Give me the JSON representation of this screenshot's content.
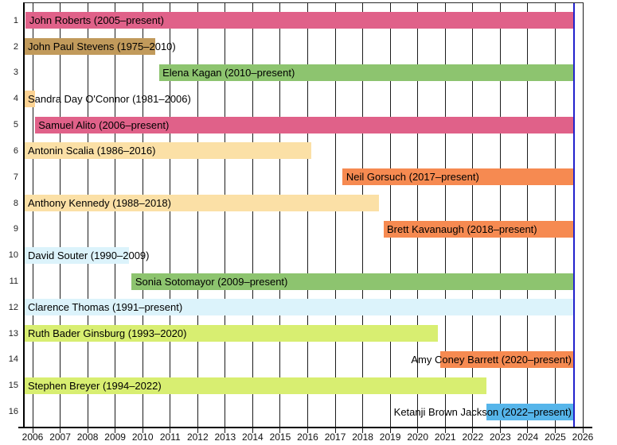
{
  "chart_data": {
    "type": "gantt",
    "title": "",
    "x_axis": {
      "min": 2006,
      "max": 2026,
      "tick_years": [
        2006,
        2007,
        2008,
        2009,
        2010,
        2011,
        2012,
        2013,
        2014,
        2015,
        2016,
        2017,
        2018,
        2019,
        2020,
        2021,
        2022,
        2023,
        2024,
        2025,
        2026
      ],
      "tick_labels": [
        "2006",
        "2007",
        "2008",
        "2009",
        "2010",
        "2011",
        "2012",
        "2013",
        "2014",
        "2015",
        "2016",
        "2017",
        "2018",
        "2019",
        "2020",
        "2021",
        "2022",
        "2023",
        "2024",
        "2025",
        "2026"
      ]
    },
    "now_marker_year": 2025.68,
    "now_marker_color": "#2222cc",
    "grid": true,
    "rows": [
      {
        "num": "1",
        "label": "John Roberts (2005–present)",
        "start": 2005.75,
        "end": null,
        "color": "#e06189",
        "label_align": "left"
      },
      {
        "num": "2",
        "label": "John Paul Stevens (1975–2010)",
        "start": 1975.96,
        "end": 2010.47,
        "color": "#c19a5b",
        "label_align": "left"
      },
      {
        "num": "3",
        "label": "Elena Kagan (2010–present)",
        "start": 2010.59,
        "end": null,
        "color": "#8dc46f",
        "label_align": "left"
      },
      {
        "num": "4",
        "label": "Sandra Day O'Connor (1981–2006)",
        "start": 1981.75,
        "end": 2006.08,
        "color": "#fcd292",
        "label_align": "left"
      },
      {
        "num": "5",
        "label": "Samuel Alito (2006–present)",
        "start": 2006.08,
        "end": null,
        "color": "#e06189",
        "label_align": "left"
      },
      {
        "num": "6",
        "label": "Antonin Scalia (1986–2016)",
        "start": 1986.73,
        "end": 2016.12,
        "color": "#fbe0a6",
        "label_align": "left"
      },
      {
        "num": "7",
        "label": "Neil Gorsuch (2017–present)",
        "start": 2017.27,
        "end": null,
        "color": "#f68a51",
        "label_align": "left"
      },
      {
        "num": "8",
        "label": "Anthony Kennedy (1988–2018)",
        "start": 1988.12,
        "end": 2018.58,
        "color": "#fbe0a6",
        "label_align": "left"
      },
      {
        "num": "9",
        "label": "Brett Kavanaugh (2018–present)",
        "start": 2018.75,
        "end": null,
        "color": "#f68a51",
        "label_align": "left"
      },
      {
        "num": "10",
        "label": "David Souter (1990–2009)",
        "start": 1990.76,
        "end": 2009.5,
        "color": "#dcf3fb",
        "label_align": "left"
      },
      {
        "num": "11",
        "label": "Sonia Sotomayor (2009–present)",
        "start": 2009.6,
        "end": null,
        "color": "#8dc46f",
        "label_align": "left"
      },
      {
        "num": "12",
        "label": "Clarence Thomas (1991–present)",
        "start": 1991.8,
        "end": null,
        "color": "#dcf3fb",
        "label_align": "left"
      },
      {
        "num": "13",
        "label": "Ruth Bader Ginsburg (1993–2020)",
        "start": 1993.6,
        "end": 2020.72,
        "color": "#d8ee71",
        "label_align": "left"
      },
      {
        "num": "14",
        "label": "Amy Coney Barrett (2020–present)",
        "start": 2020.82,
        "end": null,
        "color": "#f68a51",
        "label_align": "right"
      },
      {
        "num": "15",
        "label": "Stephen Breyer (1994–2022)",
        "start": 1994.6,
        "end": 2022.5,
        "color": "#d8ee71",
        "label_align": "left"
      },
      {
        "num": "16",
        "label": "Ketanji Brown Jackson (2022–present)",
        "start": 2022.5,
        "end": null,
        "color": "#56b5ea",
        "label_align": "right"
      }
    ]
  }
}
